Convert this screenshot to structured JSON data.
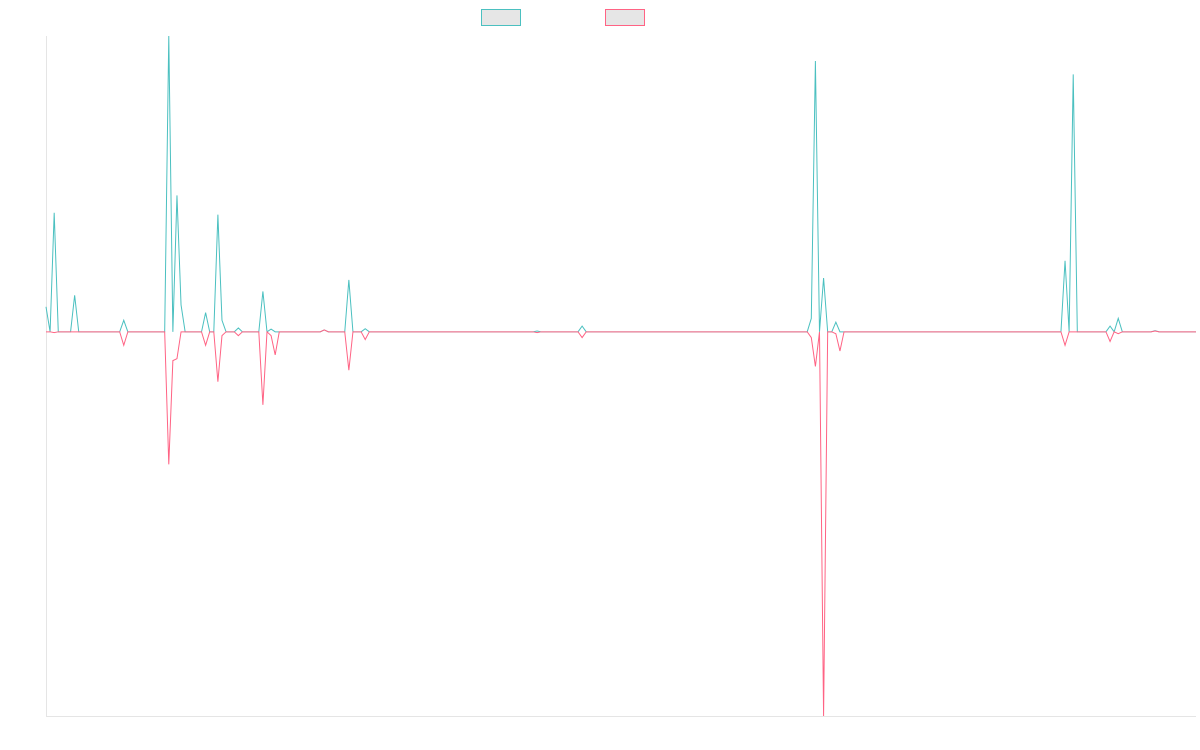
{
  "chart_data": {
    "type": "line",
    "title": "",
    "xlabel": "",
    "ylabel": "",
    "grid": false,
    "legend": "top-center",
    "ylim": [
      -1.0,
      0.77
    ],
    "x_count": 282,
    "baseline": 0,
    "series": [
      {
        "color": "#4bc0c0",
        "fill": "#e6e6e6",
        "points": [
          [
            0,
            0.065
          ],
          [
            2,
            0.31
          ],
          [
            3,
            0.0
          ],
          [
            4,
            0.0
          ],
          [
            7,
            0.095
          ],
          [
            8,
            0.0
          ],
          [
            18,
            0.0
          ],
          [
            19,
            0.03
          ],
          [
            20,
            0.0
          ],
          [
            29,
            0.0
          ],
          [
            30,
            0.77
          ],
          [
            31,
            0.0
          ],
          [
            32,
            0.355
          ],
          [
            33,
            0.07
          ],
          [
            34,
            0.0
          ],
          [
            38,
            0.0
          ],
          [
            39,
            0.05
          ],
          [
            40,
            0.0
          ],
          [
            42,
            0.305
          ],
          [
            43,
            0.03
          ],
          [
            44,
            0.0
          ],
          [
            46,
            0.0
          ],
          [
            47,
            0.01
          ],
          [
            48,
            0.0
          ],
          [
            52,
            0.0
          ],
          [
            53,
            0.105
          ],
          [
            54,
            0.0
          ],
          [
            55,
            0.007
          ],
          [
            56,
            0.0
          ],
          [
            67,
            0.0
          ],
          [
            68,
            0.005
          ],
          [
            69,
            0.0
          ],
          [
            73,
            0.0
          ],
          [
            74,
            0.135
          ],
          [
            75,
            0.0
          ],
          [
            77,
            0.0
          ],
          [
            78,
            0.008
          ],
          [
            79,
            0.0
          ],
          [
            119,
            0.0
          ],
          [
            120,
            0.002
          ],
          [
            121,
            0.0
          ],
          [
            130,
            0.0
          ],
          [
            131,
            0.015
          ],
          [
            132,
            0.0
          ],
          [
            186,
            0.0
          ],
          [
            187,
            0.035
          ],
          [
            188,
            0.705
          ],
          [
            189,
            0.0
          ],
          [
            190,
            0.14
          ],
          [
            191,
            0.0
          ],
          [
            192,
            0.0
          ],
          [
            193,
            0.025
          ],
          [
            194,
            0.0
          ],
          [
            248,
            0.0
          ],
          [
            249,
            0.185
          ],
          [
            250,
            0.0
          ],
          [
            251,
            0.67
          ],
          [
            252,
            0.0
          ],
          [
            259,
            0.0
          ],
          [
            260,
            0.015
          ],
          [
            261,
            0.0
          ],
          [
            262,
            0.035
          ],
          [
            263,
            0.0
          ],
          [
            270,
            0.0
          ],
          [
            271,
            0.003
          ],
          [
            272,
            0.0
          ],
          [
            281,
            0.0
          ]
        ]
      },
      {
        "color": "#ff6384",
        "fill": "#e6e6e6",
        "points": [
          [
            0,
            0.0
          ],
          [
            2,
            -0.002
          ],
          [
            3,
            0.0
          ],
          [
            18,
            0.0
          ],
          [
            19,
            -0.035
          ],
          [
            20,
            0.0
          ],
          [
            29,
            0.0
          ],
          [
            30,
            -0.345
          ],
          [
            31,
            -0.075
          ],
          [
            32,
            -0.07
          ],
          [
            33,
            0.0
          ],
          [
            38,
            0.0
          ],
          [
            39,
            -0.035
          ],
          [
            40,
            0.0
          ],
          [
            42,
            -0.13
          ],
          [
            43,
            -0.01
          ],
          [
            44,
            0.0
          ],
          [
            46,
            0.0
          ],
          [
            47,
            -0.01
          ],
          [
            48,
            0.0
          ],
          [
            52,
            0.0
          ],
          [
            53,
            -0.19
          ],
          [
            54,
            0.0
          ],
          [
            55,
            -0.01
          ],
          [
            56,
            -0.06
          ],
          [
            57,
            0.0
          ],
          [
            67,
            0.0
          ],
          [
            68,
            0.005
          ],
          [
            69,
            0.0
          ],
          [
            73,
            0.0
          ],
          [
            74,
            -0.1
          ],
          [
            75,
            0.0
          ],
          [
            77,
            0.0
          ],
          [
            78,
            -0.02
          ],
          [
            79,
            0.0
          ],
          [
            119,
            0.0
          ],
          [
            120,
            -0.002
          ],
          [
            121,
            0.0
          ],
          [
            130,
            0.0
          ],
          [
            131,
            -0.015
          ],
          [
            132,
            0.0
          ],
          [
            186,
            0.0
          ],
          [
            187,
            -0.015
          ],
          [
            188,
            -0.09
          ],
          [
            189,
            0.0
          ],
          [
            190,
            -1.0
          ],
          [
            191,
            0.0
          ],
          [
            192,
            0.0
          ],
          [
            193,
            -0.005
          ],
          [
            194,
            -0.05
          ],
          [
            195,
            0.0
          ],
          [
            248,
            0.0
          ],
          [
            249,
            -0.035
          ],
          [
            250,
            0.0
          ],
          [
            259,
            0.0
          ],
          [
            260,
            -0.025
          ],
          [
            261,
            0.0
          ],
          [
            262,
            -0.005
          ],
          [
            263,
            0.0
          ],
          [
            270,
            0.0
          ],
          [
            271,
            0.002
          ],
          [
            272,
            0.0
          ],
          [
            281,
            0.0
          ]
        ]
      }
    ]
  }
}
